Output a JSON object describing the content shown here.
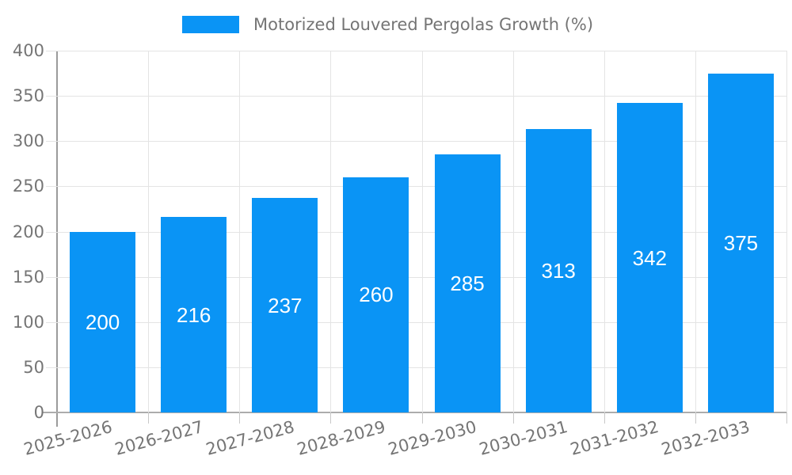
{
  "legend": {
    "label": "Motorized Louvered Pergolas Growth (%)"
  },
  "chart_data": {
    "type": "bar",
    "title": "Motorized Louvered Pergolas Growth (%)",
    "categories": [
      "2025-2026",
      "2026-2027",
      "2027-2028",
      "2028-2029",
      "2029-2030",
      "2030-2031",
      "2031-2032",
      "2032-2033"
    ],
    "values": [
      200,
      216,
      237,
      260,
      285,
      313,
      342,
      375
    ],
    "xlabel": "",
    "ylabel": "",
    "ylim": [
      0,
      400
    ],
    "yticks": [
      0,
      50,
      100,
      150,
      200,
      250,
      300,
      350,
      400
    ],
    "grid": true,
    "legend_position": "top",
    "bar_color": "#0A94F5",
    "value_label_color": "#ffffff",
    "axis_text_color": "#757575",
    "gridline_color": "#E4E4E4"
  }
}
